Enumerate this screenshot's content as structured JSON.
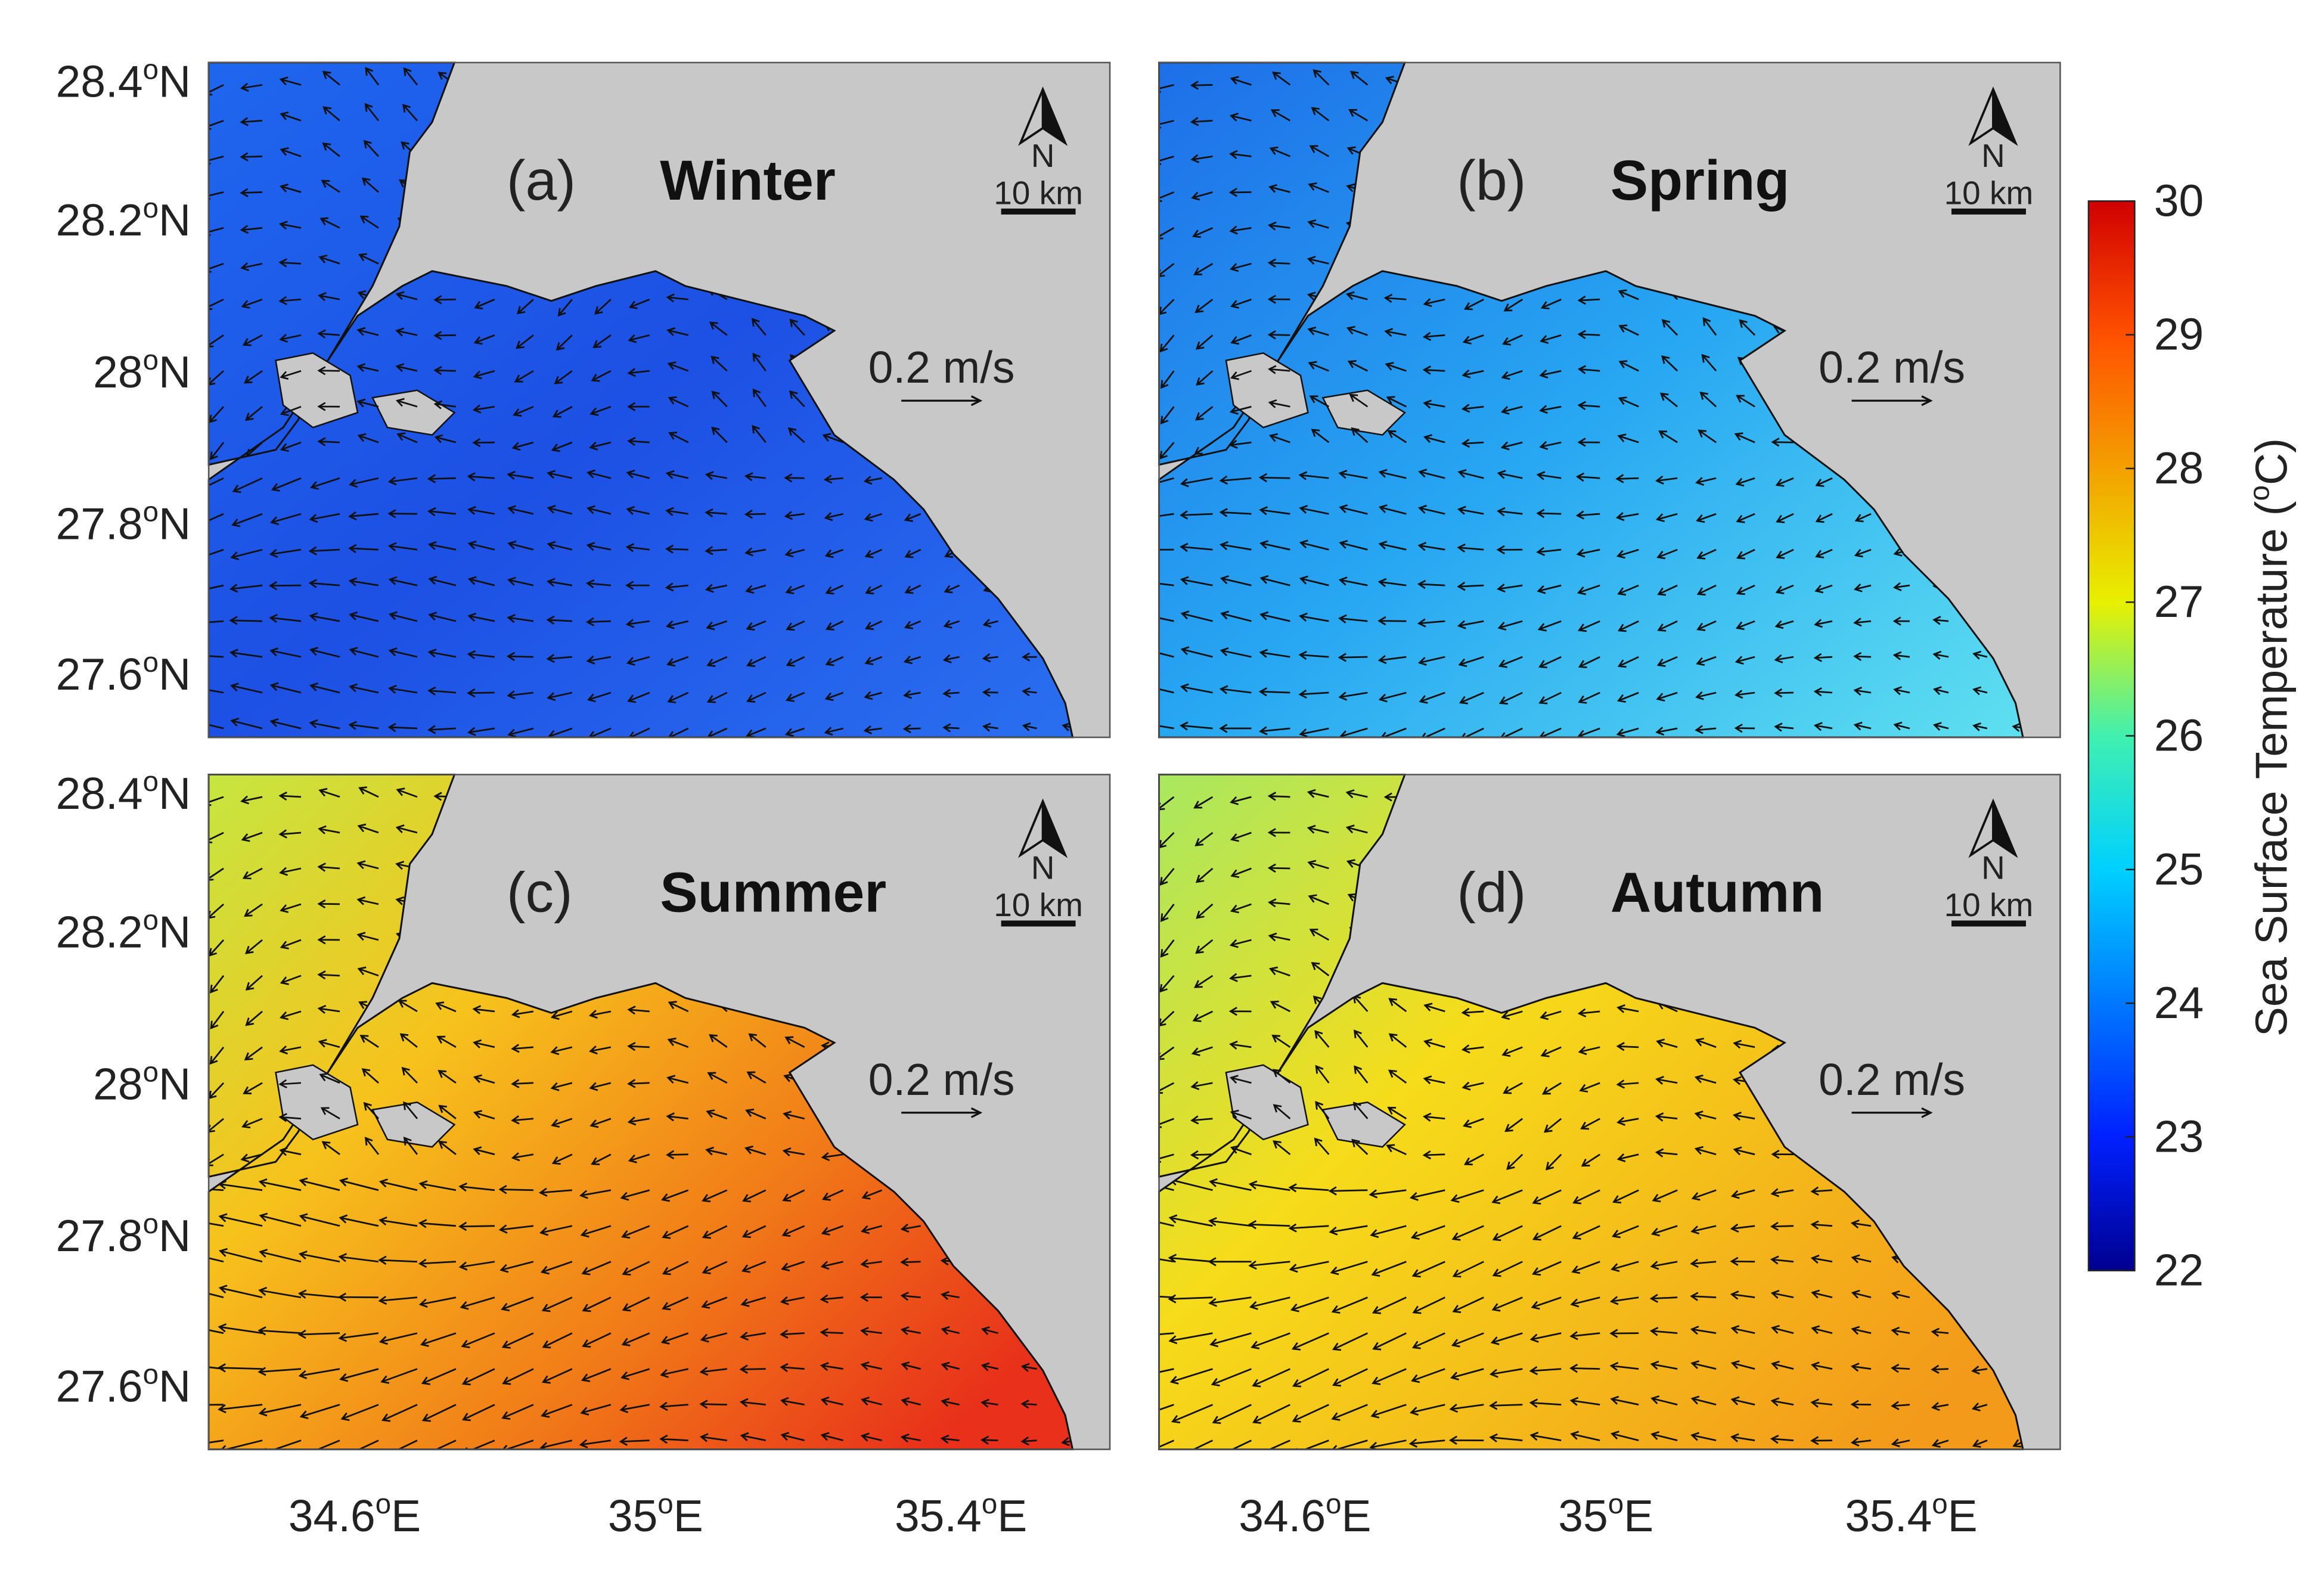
{
  "panels": [
    {
      "label": "(a)",
      "season": "Winter",
      "north": "N",
      "scale_bar": "10 km",
      "vector_scale": "0.2 m/s"
    },
    {
      "label": "(b)",
      "season": "Spring",
      "north": "N",
      "scale_bar": "10 km",
      "vector_scale": "0.2 m/s"
    },
    {
      "label": "(c)",
      "season": "Summer",
      "north": "N",
      "scale_bar": "10 km",
      "vector_scale": "0.2 m/s"
    },
    {
      "label": "(d)",
      "season": "Autumn",
      "north": "N",
      "scale_bar": "10 km",
      "vector_scale": "0.2 m/s"
    }
  ],
  "lat_labels": [
    {
      "value": "28.4",
      "degree": "o",
      "hemisphere": "N"
    },
    {
      "value": "28.2",
      "degree": "o",
      "hemisphere": "N"
    },
    {
      "value": "28",
      "degree": "o",
      "hemisphere": "N"
    },
    {
      "value": "27.8",
      "degree": "o",
      "hemisphere": "N"
    },
    {
      "value": "27.6",
      "degree": "o",
      "hemisphere": "N"
    }
  ],
  "lon_labels": [
    {
      "value": "34.6",
      "degree": "o",
      "hemisphere": "E"
    },
    {
      "value": "35",
      "degree": "o",
      "hemisphere": "E"
    },
    {
      "value": "35.4",
      "degree": "o",
      "hemisphere": "E"
    }
  ],
  "colorbar": {
    "range": [
      22,
      30
    ],
    "ticks": [
      22,
      23,
      24,
      25,
      26,
      27,
      28,
      29,
      30
    ],
    "label": {
      "before": "Sea Surface Temperature (",
      "degree": "o",
      "after": "C)"
    }
  }
}
